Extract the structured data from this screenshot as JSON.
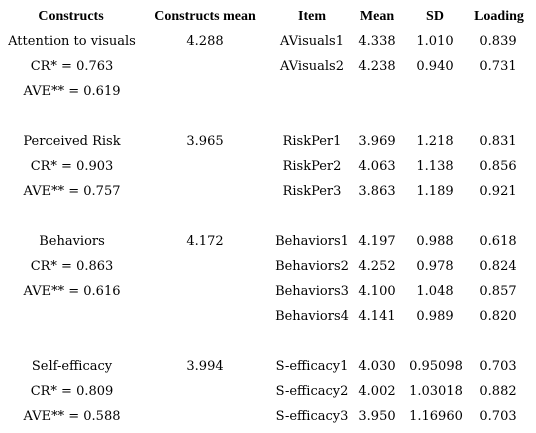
{
  "headers": [
    "Constructs",
    "Constructs mean",
    "Item",
    "Mean",
    "SD",
    "Loading"
  ],
  "groups": [
    {
      "construct": "Attention to visuals",
      "cr": "CR* = 0.763",
      "ave": "AVE** = 0.619",
      "mean": "4.288",
      "items": [
        {
          "item": "AVisuals1",
          "mean": "4.338",
          "sd": "1.010",
          "loading": "0.839"
        },
        {
          "item": "AVisuals2",
          "mean": "4.238",
          "sd": "0.940",
          "loading": "0.731"
        }
      ]
    },
    {
      "construct": "Perceived Risk",
      "cr": "CR* = 0.903",
      "ave": "AVE** = 0.757",
      "mean": "3.965",
      "items": [
        {
          "item": "RiskPer1",
          "mean": "3.969",
          "sd": "1.218",
          "loading": "0.831"
        },
        {
          "item": "RiskPer2",
          "mean": "4.063",
          "sd": "1.138",
          "loading": "0.856"
        },
        {
          "item": "RiskPer3",
          "mean": "3.863",
          "sd": "1.189",
          "loading": "0.921"
        }
      ]
    },
    {
      "construct": "Behaviors",
      "cr": "CR* = 0.863",
      "ave": "AVE** = 0.616",
      "mean": "4.172",
      "items": [
        {
          "item": "Behaviors1",
          "mean": "4.197",
          "sd": "0.988",
          "loading": "0.618"
        },
        {
          "item": "Behaviors2",
          "mean": "4.252",
          "sd": "0.978",
          "loading": "0.824"
        },
        {
          "item": "Behaviors3",
          "mean": "4.100",
          "sd": "1.048",
          "loading": "0.857"
        },
        {
          "item": "Behaviors4",
          "mean": "4.141",
          "sd": "0.989",
          "loading": "0.820"
        }
      ]
    },
    {
      "construct": "Self-efficacy",
      "cr": "CR* = 0.809",
      "ave": "AVE** = 0.588",
      "mean": "3.994",
      "items": [
        {
          "item": "S-efficacy1",
          "mean": "4.030",
          "sd": "0.95098",
          "loading": "0.703"
        },
        {
          "item": "S-efficacy2",
          "mean": "4.002",
          "sd": "1.03018",
          "loading": "0.882"
        },
        {
          "item": "S-efficacy3",
          "mean": "3.950",
          "sd": "1.16960",
          "loading": "0.703"
        }
      ]
    }
  ]
}
